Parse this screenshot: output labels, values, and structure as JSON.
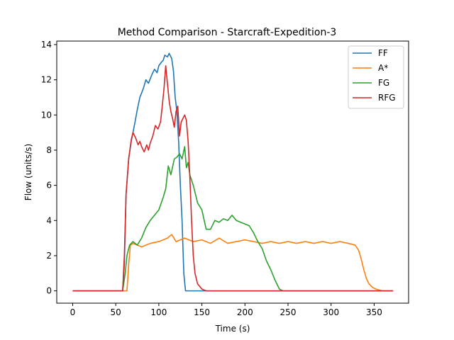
{
  "chart_data": {
    "type": "line",
    "title": "Method Comparison - Starcraft-Expedition-3",
    "xlabel": "Time (s)",
    "ylabel": "Flow (units/s)",
    "xlim": [
      -18.5,
      390
    ],
    "ylim": [
      -0.7,
      14.2
    ],
    "xticks": [
      0,
      50,
      100,
      150,
      200,
      250,
      300,
      350
    ],
    "yticks": [
      0,
      2,
      4,
      6,
      8,
      10,
      12,
      14
    ],
    "legend_position": "top-right",
    "grid": false,
    "series": [
      {
        "name": "FF",
        "color": "#1f77b4",
        "points": [
          [
            0,
            0
          ],
          [
            58,
            0
          ],
          [
            60,
            1.5
          ],
          [
            62,
            5.5
          ],
          [
            65,
            7.5
          ],
          [
            68,
            8.5
          ],
          [
            72,
            9.5
          ],
          [
            75,
            10.3
          ],
          [
            78,
            11
          ],
          [
            82,
            11.5
          ],
          [
            85,
            12
          ],
          [
            88,
            11.8
          ],
          [
            92,
            12.3
          ],
          [
            95,
            12.6
          ],
          [
            98,
            12.4
          ],
          [
            100,
            12.8
          ],
          [
            103,
            13
          ],
          [
            105,
            13.1
          ],
          [
            107,
            13.4
          ],
          [
            110,
            13.3
          ],
          [
            112,
            13.5
          ],
          [
            115,
            13.2
          ],
          [
            117,
            12.5
          ],
          [
            119,
            11
          ],
          [
            121,
            10.2
          ],
          [
            123,
            8.5
          ],
          [
            125,
            6
          ],
          [
            127,
            4
          ],
          [
            129,
            1
          ],
          [
            131,
            0
          ],
          [
            372,
            0
          ]
        ]
      },
      {
        "name": "A*",
        "color": "#ff7f0e",
        "points": [
          [
            0,
            0
          ],
          [
            63,
            0
          ],
          [
            65,
            1.5
          ],
          [
            67,
            2.6
          ],
          [
            70,
            2.7
          ],
          [
            80,
            2.5
          ],
          [
            90,
            2.7
          ],
          [
            100,
            2.8
          ],
          [
            110,
            3
          ],
          [
            115,
            3.2
          ],
          [
            120,
            2.8
          ],
          [
            130,
            3
          ],
          [
            140,
            2.8
          ],
          [
            150,
            2.9
          ],
          [
            160,
            2.7
          ],
          [
            170,
            3
          ],
          [
            180,
            2.7
          ],
          [
            190,
            2.8
          ],
          [
            200,
            2.9
          ],
          [
            210,
            2.8
          ],
          [
            220,
            2.7
          ],
          [
            230,
            2.8
          ],
          [
            240,
            2.7
          ],
          [
            250,
            2.8
          ],
          [
            260,
            2.7
          ],
          [
            270,
            2.8
          ],
          [
            280,
            2.7
          ],
          [
            290,
            2.8
          ],
          [
            300,
            2.7
          ],
          [
            310,
            2.8
          ],
          [
            320,
            2.7
          ],
          [
            328,
            2.6
          ],
          [
            332,
            2.3
          ],
          [
            335,
            1.8
          ],
          [
            338,
            1.2
          ],
          [
            341,
            0.7
          ],
          [
            344,
            0.4
          ],
          [
            348,
            0.2
          ],
          [
            352,
            0.1
          ],
          [
            360,
            0
          ],
          [
            372,
            0
          ]
        ]
      },
      {
        "name": "FG",
        "color": "#2ca02c",
        "points": [
          [
            0,
            0
          ],
          [
            58,
            0
          ],
          [
            61,
            1
          ],
          [
            63,
            2
          ],
          [
            66,
            2.6
          ],
          [
            70,
            2.8
          ],
          [
            75,
            2.6
          ],
          [
            80,
            3
          ],
          [
            85,
            3.6
          ],
          [
            90,
            4
          ],
          [
            95,
            4.3
          ],
          [
            100,
            4.6
          ],
          [
            105,
            5.3
          ],
          [
            108,
            5.8
          ],
          [
            111,
            7.1
          ],
          [
            114,
            6.6
          ],
          [
            118,
            7.5
          ],
          [
            121,
            7.6
          ],
          [
            124,
            7.8
          ],
          [
            127,
            7.5
          ],
          [
            130,
            8.2
          ],
          [
            132,
            7
          ],
          [
            134,
            7.3
          ],
          [
            136,
            6.6
          ],
          [
            140,
            6
          ],
          [
            145,
            5
          ],
          [
            150,
            4.6
          ],
          [
            155,
            3.5
          ],
          [
            160,
            3.5
          ],
          [
            165,
            4
          ],
          [
            170,
            3.9
          ],
          [
            175,
            4.1
          ],
          [
            180,
            4
          ],
          [
            185,
            4.3
          ],
          [
            190,
            4
          ],
          [
            195,
            3.9
          ],
          [
            200,
            3.8
          ],
          [
            205,
            3.7
          ],
          [
            210,
            3.3
          ],
          [
            215,
            2.8
          ],
          [
            220,
            2.4
          ],
          [
            225,
            1.7
          ],
          [
            230,
            1.2
          ],
          [
            235,
            0.6
          ],
          [
            240,
            0.1
          ],
          [
            244,
            0
          ],
          [
            372,
            0
          ]
        ]
      },
      {
        "name": "RFG",
        "color": "#d62728",
        "points": [
          [
            0,
            0
          ],
          [
            58,
            0
          ],
          [
            60,
            2
          ],
          [
            62,
            5.5
          ],
          [
            65,
            7.5
          ],
          [
            68,
            8.6
          ],
          [
            70,
            9
          ],
          [
            73,
            8.7
          ],
          [
            76,
            8.3
          ],
          [
            78,
            8.5
          ],
          [
            80,
            8.2
          ],
          [
            83,
            7.9
          ],
          [
            86,
            8.3
          ],
          [
            88,
            8
          ],
          [
            90,
            8.4
          ],
          [
            93,
            8.8
          ],
          [
            96,
            9.4
          ],
          [
            99,
            9.2
          ],
          [
            102,
            9.6
          ],
          [
            104,
            10.5
          ],
          [
            106,
            11.5
          ],
          [
            108,
            12.8
          ],
          [
            110,
            11.8
          ],
          [
            112,
            10.8
          ],
          [
            114,
            10.2
          ],
          [
            116,
            9.8
          ],
          [
            118,
            9.3
          ],
          [
            120,
            10.2
          ],
          [
            122,
            10.5
          ],
          [
            124,
            8.8
          ],
          [
            126,
            9.6
          ],
          [
            128,
            9.8
          ],
          [
            130,
            10
          ],
          [
            132,
            9.7
          ],
          [
            134,
            8.5
          ],
          [
            136,
            6.5
          ],
          [
            138,
            4
          ],
          [
            140,
            2
          ],
          [
            142,
            1
          ],
          [
            145,
            0.4
          ],
          [
            150,
            0.1
          ],
          [
            155,
            0
          ],
          [
            372,
            0
          ]
        ]
      }
    ]
  }
}
